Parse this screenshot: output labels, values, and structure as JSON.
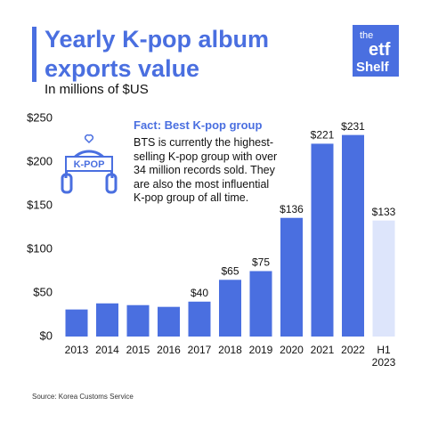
{
  "chart_data": {
    "type": "bar",
    "title": "Yearly K-pop album exports value",
    "subtitle": "In millions of $US",
    "categories": [
      "2013",
      "2014",
      "2015",
      "2016",
      "2017",
      "2018",
      "2019",
      "2020",
      "2021",
      "2022",
      "H1 2023"
    ],
    "values": [
      31,
      38,
      36,
      34,
      40,
      65,
      75,
      136,
      221,
      231,
      133
    ],
    "value_labels": [
      null,
      null,
      null,
      null,
      "$40",
      "$65",
      "$75",
      "$136",
      "$221",
      "$231",
      "$133"
    ],
    "colors": [
      "#4a6fe0",
      "#4a6fe0",
      "#4a6fe0",
      "#4a6fe0",
      "#4a6fe0",
      "#4a6fe0",
      "#4a6fe0",
      "#4a6fe0",
      "#4a6fe0",
      "#4a6fe0",
      "#dde5fb"
    ],
    "ylim": [
      0,
      250
    ],
    "yticks": [
      {
        "value": 0,
        "label": "$0"
      },
      {
        "value": 50,
        "label": "$50"
      },
      {
        "value": 100,
        "label": "$100"
      },
      {
        "value": 150,
        "label": "$150"
      },
      {
        "value": 200,
        "label": "$200"
      },
      {
        "value": 250,
        "label": "$250"
      }
    ],
    "grid": false,
    "fact": {
      "title": "Fact: Best K-pop group",
      "lines": [
        "BTS is currently the highest-",
        "selling K-pop group with over",
        "34 million records sold. They",
        "are also the most influential",
        "K-pop group of all time."
      ],
      "icon_label": "K-POP"
    },
    "logo": {
      "top": "the",
      "middle": "etf",
      "bottom": "Shelf"
    },
    "source": "Source: Korea Customs Service"
  }
}
